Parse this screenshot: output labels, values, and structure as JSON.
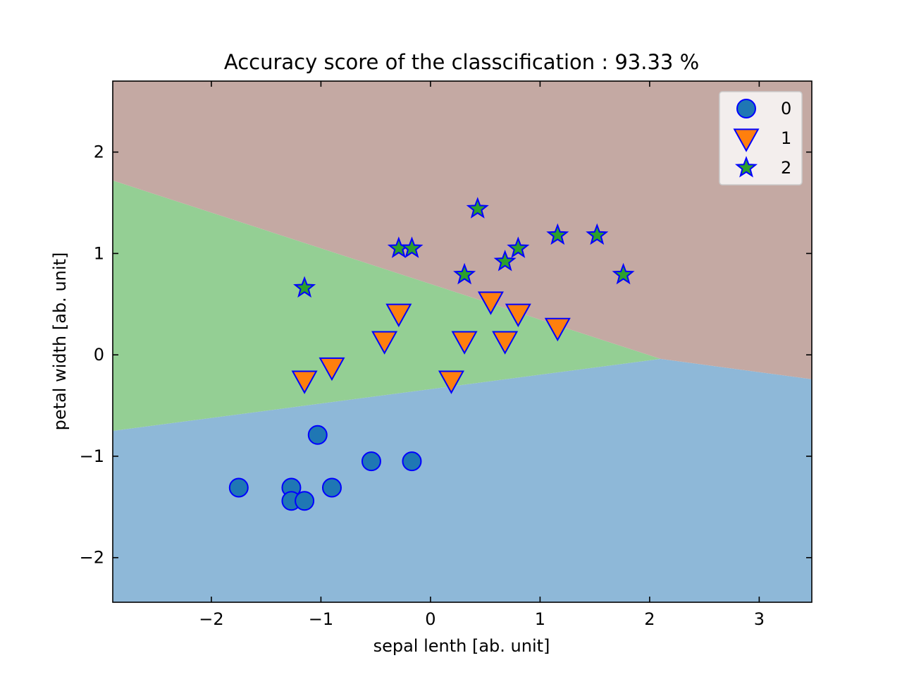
{
  "chart_data": {
    "type": "scatter",
    "title": "Accuracy score of the classcification : 93.33 %",
    "xlabel": "sepal lenth [ab. unit]",
    "ylabel": "petal width [ab. unit]",
    "xlim": [
      -2.9,
      3.48
    ],
    "ylim": [
      -2.44,
      2.7
    ],
    "x_ticks": [
      -2,
      -1,
      0,
      1,
      2,
      3
    ],
    "x_tick_labels": [
      "−2",
      "−1",
      "0",
      "1",
      "2",
      "3"
    ],
    "y_ticks": [
      -2,
      -1,
      0,
      1,
      2
    ],
    "y_tick_labels": [
      "−2",
      "−1",
      "0",
      "1",
      "2"
    ],
    "grid": false,
    "legend_position": "top-right",
    "decision_regions": [
      {
        "class": "0",
        "color": "#8eb8d8",
        "polygon": [
          [
            -2.9,
            -2.44
          ],
          [
            3.48,
            -2.44
          ],
          [
            3.48,
            -0.24
          ],
          [
            2.1,
            -0.04
          ],
          [
            -2.9,
            -0.75
          ]
        ]
      },
      {
        "class": "1",
        "color": "#94cf94",
        "polygon": [
          [
            -2.9,
            -0.75
          ],
          [
            2.1,
            -0.04
          ],
          [
            -2.9,
            1.72
          ]
        ]
      },
      {
        "class": "2",
        "color": "#c4a9a3",
        "polygon": [
          [
            -2.9,
            1.72
          ],
          [
            2.1,
            -0.04
          ],
          [
            3.48,
            -0.24
          ],
          [
            3.48,
            2.7
          ],
          [
            -2.9,
            2.7
          ]
        ]
      }
    ],
    "series": [
      {
        "name": "0",
        "marker": "circle",
        "color": "#1f77b4",
        "edge_color": "#0000ff",
        "points": [
          [
            -1.75,
            -1.31
          ],
          [
            -1.27,
            -1.31
          ],
          [
            -1.27,
            -1.44
          ],
          [
            -1.15,
            -1.44
          ],
          [
            -1.03,
            -0.79
          ],
          [
            -0.9,
            -1.31
          ],
          [
            -0.54,
            -1.05
          ],
          [
            -0.17,
            -1.05
          ]
        ]
      },
      {
        "name": "1",
        "marker": "triangle-down",
        "color": "#ff7f0e",
        "edge_color": "#0000ff",
        "points": [
          [
            -1.15,
            -0.25
          ],
          [
            -0.9,
            -0.12
          ],
          [
            -0.42,
            0.14
          ],
          [
            -0.29,
            0.41
          ],
          [
            0.19,
            -0.25
          ],
          [
            0.31,
            0.14
          ],
          [
            0.55,
            0.53
          ],
          [
            0.68,
            0.14
          ],
          [
            0.8,
            0.41
          ],
          [
            1.16,
            0.27
          ]
        ]
      },
      {
        "name": "2",
        "marker": "star",
        "color": "#2ca02c",
        "edge_color": "#0000ff",
        "points": [
          [
            -1.15,
            0.66
          ],
          [
            -0.29,
            1.05
          ],
          [
            -0.17,
            1.05
          ],
          [
            0.31,
            0.79
          ],
          [
            0.43,
            1.44
          ],
          [
            0.68,
            0.92
          ],
          [
            0.8,
            1.05
          ],
          [
            1.16,
            1.18
          ],
          [
            1.52,
            1.18
          ],
          [
            1.76,
            0.79
          ]
        ]
      }
    ]
  }
}
